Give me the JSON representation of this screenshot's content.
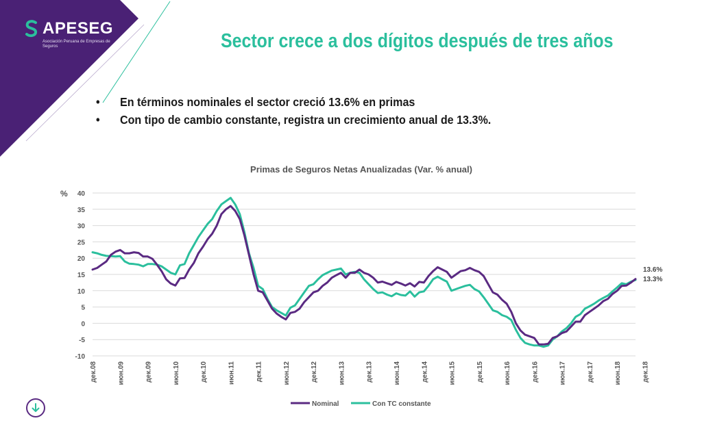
{
  "logo": {
    "name": "APESEG",
    "subtitle": "Asociación Peruana de Empresas de Seguros"
  },
  "title": "Sector crece a dos dígitos después de tres años",
  "bullets": [
    "En términos nominales el sector creció 13.6% en primas",
    "Con tipo de cambio constante, registra un crecimiento anual de 13.3%."
  ],
  "bullet_glyph": "•",
  "colors": {
    "purple": "#5a2a82",
    "green": "#2bbf9d",
    "band": "#4a2175"
  },
  "icons": {
    "logo_mark": "apeseg-logo-icon",
    "nav": "arrow-down-circle-icon"
  },
  "chart_data": {
    "type": "line",
    "title": "Primas de Seguros Netas Anualizadas (Var. % anual)",
    "ylabel": "%",
    "ylim": [
      -10,
      40
    ],
    "yticks": [
      -10,
      -5,
      0,
      5,
      10,
      15,
      20,
      25,
      30,
      35,
      40
    ],
    "grid": true,
    "legend_position": "bottom",
    "x_tick_labels": [
      "дек.08",
      "июн.09",
      "дек.09",
      "июн.10",
      "дек.10",
      "июн.11",
      "дек.11",
      "июн.12",
      "дек.12",
      "июн.13",
      "дек.13",
      "июн.14",
      "дек.14",
      "июн.15",
      "дек.15",
      "июн.16",
      "дек.16",
      "июн.17",
      "дек.17",
      "июн.18",
      "дек.18"
    ],
    "months_per_tick": 6,
    "end_labels": [
      "13.6%",
      "13.3%"
    ],
    "series": [
      {
        "name": "Nominal",
        "color": "#5a2a82",
        "values": [
          16.5,
          17,
          18,
          19,
          21,
          22,
          22.5,
          21.5,
          21.5,
          21.8,
          21.6,
          20.5,
          20.5,
          19.8,
          18,
          16,
          13.5,
          12.2,
          11.6,
          13.8,
          13.9,
          16.5,
          18.5,
          21.5,
          23.5,
          25.8,
          27.5,
          30,
          33.5,
          35,
          36,
          34.5,
          32,
          27,
          21,
          15,
          10,
          9.5,
          7,
          4.5,
          3,
          2,
          1.2,
          3.2,
          3.5,
          4.5,
          6.5,
          8,
          9.5,
          10,
          11.5,
          12.5,
          14,
          14.8,
          15.5,
          14,
          15.5,
          15.5,
          16.5,
          15.5,
          15,
          14,
          12.5,
          12.8,
          12.3,
          11.8,
          12.7,
          12.2,
          11.6,
          12.3,
          11.3,
          12.7,
          12.5,
          14.5,
          16,
          17.2,
          16.5,
          15.8,
          14,
          15,
          16,
          16.3,
          17,
          16.3,
          15.8,
          14.5,
          12,
          9.5,
          8.8,
          7.2,
          6,
          3.5,
          0,
          -2.2,
          -3.5,
          -4,
          -4.5,
          -6.5,
          -6.5,
          -6.3,
          -4.5,
          -4,
          -3,
          -2.5,
          -1,
          0.5,
          0.5,
          2.5,
          3.5,
          4.5,
          5.5,
          6.8,
          7.5,
          9,
          10,
          11.5,
          11.6,
          12.5,
          13.6
        ]
      },
      {
        "name": "Con TC constante",
        "color": "#2bbf9d",
        "values": [
          21.8,
          21.5,
          21,
          20.7,
          20.6,
          20.5,
          20.6,
          19,
          18.3,
          18.2,
          18,
          17.5,
          18.2,
          18.2,
          18,
          17.5,
          16.5,
          15.5,
          15,
          17.8,
          18.2,
          21.5,
          24,
          26.5,
          28.5,
          30.5,
          32,
          34.5,
          36.5,
          37.5,
          38.5,
          36.5,
          33.5,
          28,
          21.5,
          17,
          11.5,
          10.5,
          7.5,
          5,
          4,
          3.2,
          2.4,
          4.8,
          5.5,
          7.5,
          9.5,
          11.5,
          12,
          13.5,
          14.8,
          15.5,
          16.2,
          16.5,
          16.8,
          15,
          15.5,
          15.8,
          15.5,
          13.5,
          12,
          10.5,
          9.3,
          9.5,
          8.8,
          8.3,
          9.2,
          8.7,
          8.5,
          9.8,
          8.2,
          9.5,
          9.8,
          11.5,
          13.5,
          14.3,
          13.5,
          12.8,
          10,
          10.5,
          11,
          11.5,
          11.8,
          10.5,
          9.8,
          8,
          6,
          4,
          3.5,
          2.5,
          2,
          1,
          -2,
          -4.5,
          -6,
          -6.5,
          -6.8,
          -6.8,
          -7.2,
          -6.8,
          -5,
          -4,
          -2.5,
          -1.5,
          0,
          2,
          2.8,
          4.5,
          5.2,
          6,
          7,
          7.8,
          8.5,
          9.8,
          11,
          12.3,
          12,
          12.8,
          13.3
        ]
      }
    ]
  }
}
